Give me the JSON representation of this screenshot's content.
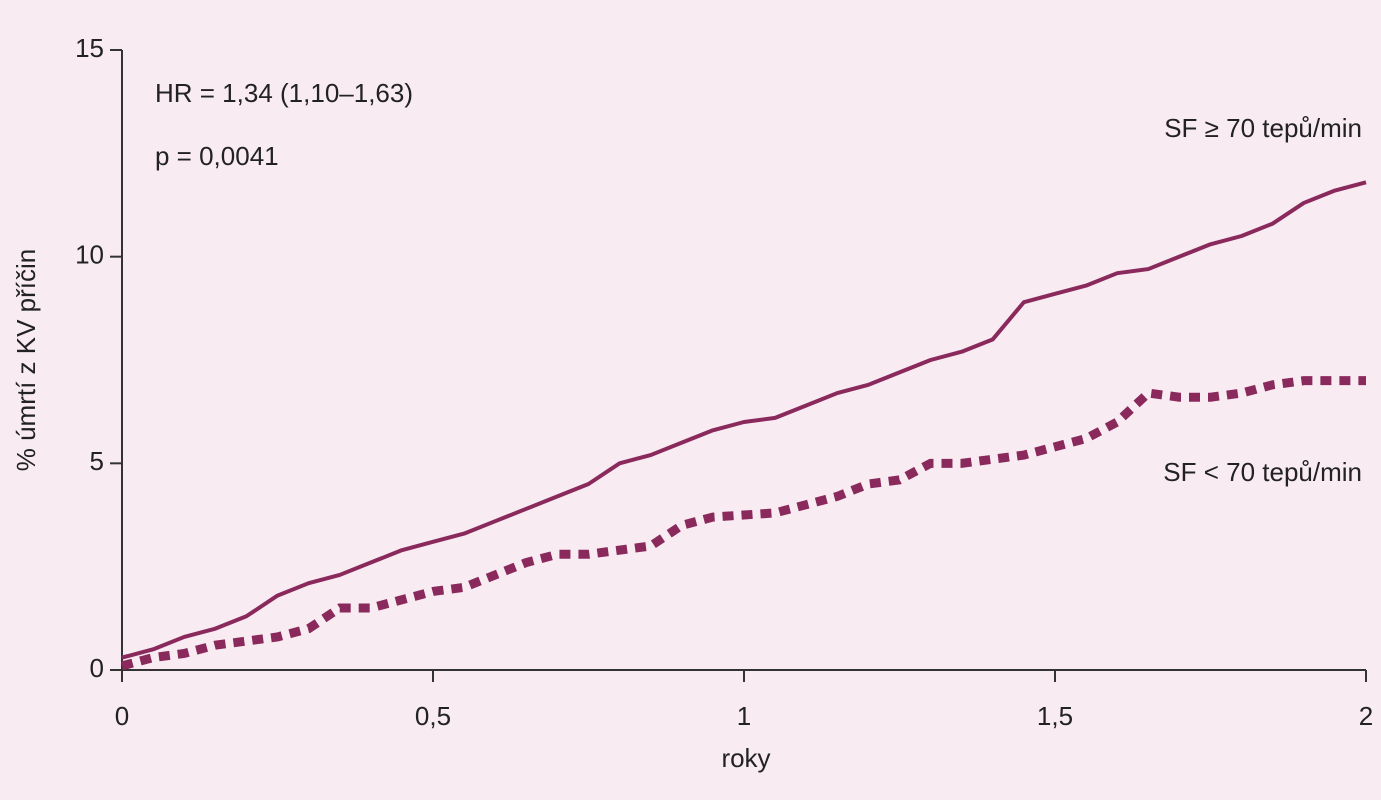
{
  "chart_data": {
    "type": "line",
    "xlabel": "roky",
    "ylabel": "% úmrtí z KV příčin",
    "annotations": [
      "HR = 1,34 (1,10–1,63)",
      "p = 0,0041"
    ],
    "x": [
      0,
      0.05,
      0.1,
      0.15,
      0.2,
      0.25,
      0.3,
      0.35,
      0.4,
      0.45,
      0.5,
      0.55,
      0.6,
      0.65,
      0.7,
      0.75,
      0.8,
      0.85,
      0.9,
      0.95,
      1.0,
      1.05,
      1.1,
      1.15,
      1.2,
      1.25,
      1.3,
      1.35,
      1.4,
      1.45,
      1.5,
      1.55,
      1.6,
      1.65,
      1.7,
      1.75,
      1.8,
      1.85,
      1.9,
      1.95,
      2.0
    ],
    "series": [
      {
        "name": "SF ≥ 70 tepů/min",
        "color": "#8a2a5c",
        "line_style": "solid",
        "values": [
          0.3,
          0.5,
          0.8,
          1.0,
          1.3,
          1.8,
          2.1,
          2.3,
          2.6,
          2.9,
          3.1,
          3.3,
          3.6,
          3.9,
          4.2,
          4.5,
          5.0,
          5.2,
          5.5,
          5.8,
          6.0,
          6.1,
          6.4,
          6.7,
          6.9,
          7.2,
          7.5,
          7.7,
          8.0,
          8.9,
          9.1,
          9.3,
          9.6,
          9.7,
          10.0,
          10.3,
          10.5,
          10.8,
          11.3,
          11.6,
          11.8
        ]
      },
      {
        "name": "SF < 70 tepů/min",
        "color": "#8a2a5c",
        "line_style": "dotted",
        "values": [
          0.1,
          0.3,
          0.4,
          0.6,
          0.7,
          0.8,
          1.0,
          1.5,
          1.5,
          1.7,
          1.9,
          2.0,
          2.3,
          2.6,
          2.8,
          2.8,
          2.9,
          3.0,
          3.5,
          3.7,
          3.75,
          3.8,
          4.0,
          4.2,
          4.5,
          4.6,
          5.0,
          5.0,
          5.1,
          5.2,
          5.4,
          5.6,
          6.0,
          6.7,
          6.6,
          6.6,
          6.7,
          6.9,
          7.0,
          7.0,
          7.0
        ]
      }
    ],
    "xlim": [
      0,
      2
    ],
    "xticks": [
      0,
      {
        "value": 0.5,
        "label": "0,5"
      },
      1,
      {
        "value": 1.5,
        "label": "1,5"
      },
      2
    ],
    "ylim": [
      0,
      15
    ],
    "yticks": [
      0,
      5,
      10,
      15
    ],
    "grid": false
  }
}
